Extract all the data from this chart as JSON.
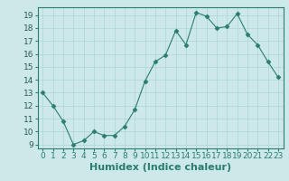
{
  "x": [
    0,
    1,
    2,
    3,
    4,
    5,
    6,
    7,
    8,
    9,
    10,
    11,
    12,
    13,
    14,
    15,
    16,
    17,
    18,
    19,
    20,
    21,
    22,
    23
  ],
  "y": [
    13,
    12,
    10.8,
    9,
    9.3,
    10,
    9.7,
    9.7,
    10.4,
    11.7,
    13.9,
    15.4,
    15.9,
    17.8,
    16.7,
    19.2,
    18.9,
    18.0,
    18.1,
    19.1,
    17.5,
    16.7,
    15.4,
    14.2
  ],
  "line_color": "#2a7d6f",
  "marker": "D",
  "marker_size": 2.5,
  "bg_color": "#cce8e8",
  "grid_color": "#aed4d4",
  "xlabel": "Humidex (Indice chaleur)",
  "xlabel_fontsize": 8,
  "tick_fontsize": 6.5,
  "ylim": [
    8.7,
    19.6
  ],
  "yticks": [
    9,
    10,
    11,
    12,
    13,
    14,
    15,
    16,
    17,
    18,
    19
  ],
  "xlim": [
    -0.5,
    23.5
  ],
  "xticks": [
    0,
    1,
    2,
    3,
    4,
    5,
    6,
    7,
    8,
    9,
    10,
    11,
    12,
    13,
    14,
    15,
    16,
    17,
    18,
    19,
    20,
    21,
    22,
    23
  ]
}
